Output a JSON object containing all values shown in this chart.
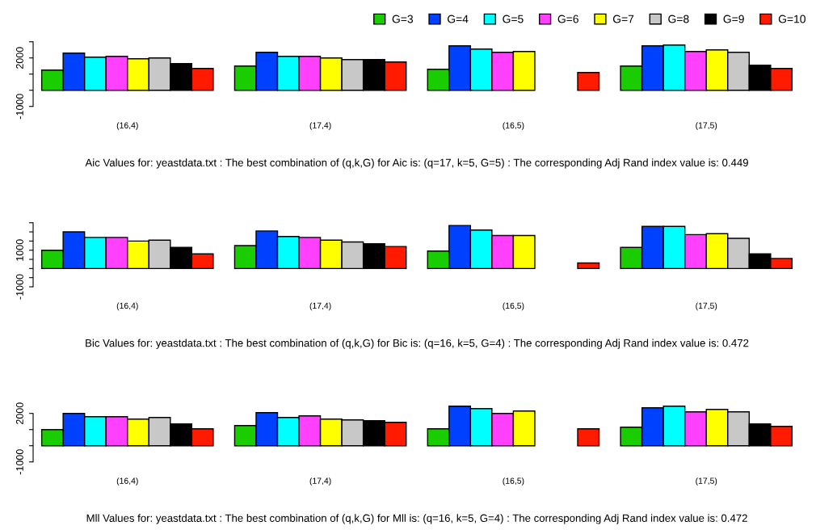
{
  "chart_data": [
    {
      "type": "bar",
      "categories": [
        "(16,4)",
        "(17,4)",
        "(16,5)",
        "(17,5)"
      ],
      "xlabel": "Aic Values for: yeastdata.txt : The best combination of (q,k,G) for Aic is: (q=17, k=5, G=5) : The corresponding Adj Rand index value is: 0.449",
      "ylim": [
        -1000,
        3000
      ],
      "yticks": [
        -1000,
        {
          "value": 0,
          "label": null
        },
        {
          "value": 1000,
          "label": null
        },
        2000,
        {
          "value": 3000,
          "label": null
        }
      ],
      "legend": "top right",
      "series": [
        {
          "name": "G=3",
          "color": "#19cd00",
          "values": [
            1250,
            1500,
            1300,
            1500
          ]
        },
        {
          "name": "G=4",
          "color": "#0040ff",
          "values": [
            2300,
            2350,
            2750,
            2750
          ]
        },
        {
          "name": "G=5",
          "color": "#00ffff",
          "values": [
            2050,
            2100,
            2550,
            2800
          ]
        },
        {
          "name": "G=6",
          "color": "#ff40ff",
          "values": [
            2100,
            2100,
            2350,
            2400
          ]
        },
        {
          "name": "G=7",
          "color": "#ffff00",
          "values": [
            1950,
            2000,
            2400,
            2500
          ]
        },
        {
          "name": "G=8",
          "color": "#c8c8c8",
          "values": [
            2000,
            1900,
            null,
            2350
          ]
        },
        {
          "name": "G=9",
          "color": "#000000",
          "values": [
            1650,
            1900,
            null,
            1550
          ]
        },
        {
          "name": "G=10",
          "color": "#ff1a00",
          "values": [
            1350,
            1750,
            1100,
            1350
          ]
        }
      ]
    },
    {
      "type": "bar",
      "categories": [
        "(16,4)",
        "(17,4)",
        "(16,5)",
        "(17,5)"
      ],
      "xlabel": "Bic Values for: yeastdata.txt : The best combination of (q,k,G) for Bic is: (q=16, k=5, G=4) : The corresponding Adj Rand index value is: 0.472",
      "ylim": [
        -1000,
        2500
      ],
      "yticks": [
        -1000,
        {
          "value": -500,
          "label": null
        },
        {
          "value": 0,
          "label": null
        },
        {
          "value": 500,
          "label": null
        },
        1000,
        {
          "value": 1500,
          "label": null
        },
        {
          "value": 2000,
          "label": null
        },
        {
          "value": 2500,
          "label": null
        }
      ],
      "series": [
        {
          "color": "#19cd00",
          "values": [
            1000,
            1250,
            950,
            1150
          ]
        },
        {
          "color": "#0040ff",
          "values": [
            2000,
            2050,
            2350,
            2300
          ]
        },
        {
          "color": "#00ffff",
          "values": [
            1700,
            1750,
            2100,
            2300
          ]
        },
        {
          "color": "#ff40ff",
          "values": [
            1700,
            1700,
            1800,
            1850
          ]
        },
        {
          "color": "#ffff00",
          "values": [
            1500,
            1550,
            1800,
            1900
          ]
        },
        {
          "color": "#c8c8c8",
          "values": [
            1550,
            1450,
            null,
            1650
          ]
        },
        {
          "color": "#000000",
          "values": [
            1150,
            1350,
            null,
            800
          ]
        },
        {
          "color": "#ff1a00",
          "values": [
            800,
            1200,
            300,
            550
          ]
        }
      ]
    },
    {
      "type": "bar",
      "categories": [
        "(16,4)",
        "(17,4)",
        "(16,5)",
        "(17,5)"
      ],
      "xlabel": "Mll Values for: yeastdata.txt : The best combination of (q,k,G) for Mll is: (q=16, k=5, G=4) : The corresponding Adj Rand index value is: 0.472",
      "ylim": [
        -1000,
        2500
      ],
      "yticks": [
        -1000,
        {
          "value": 0,
          "label": null
        },
        {
          "value": 1000,
          "label": null
        },
        2000
      ],
      "series": [
        {
          "color": "#19cd00",
          "values": [
            1000,
            1250,
            1050,
            1150
          ]
        },
        {
          "color": "#0040ff",
          "values": [
            2000,
            2050,
            2450,
            2350
          ]
        },
        {
          "color": "#00ffff",
          "values": [
            1800,
            1750,
            2300,
            2450
          ]
        },
        {
          "color": "#ff40ff",
          "values": [
            1800,
            1850,
            2000,
            2100
          ]
        },
        {
          "color": "#ffff00",
          "values": [
            1650,
            1650,
            2150,
            2250
          ]
        },
        {
          "color": "#c8c8c8",
          "values": [
            1750,
            1600,
            null,
            2100
          ]
        },
        {
          "color": "#000000",
          "values": [
            1350,
            1550,
            null,
            1350
          ]
        },
        {
          "color": "#ff1a00",
          "values": [
            1050,
            1450,
            1050,
            1200
          ]
        }
      ]
    }
  ]
}
